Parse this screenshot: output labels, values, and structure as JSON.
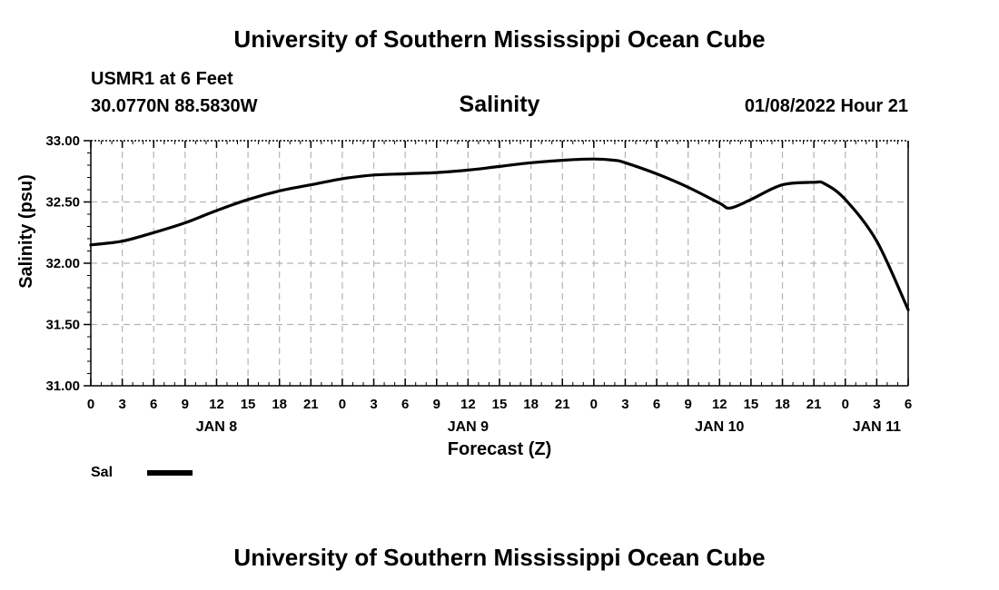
{
  "page": {
    "top_title": "University of Southern Mississippi Ocean Cube",
    "bottom_title": "University of Southern Mississippi Ocean Cube",
    "station": "USMR1 at 6 Feet",
    "coordinates": "30.0770N  88.5830W",
    "timestamp": "01/08/2022 Hour 21"
  },
  "chart_data": {
    "type": "line",
    "title": "Salinity",
    "xlabel": "Forecast (Z)",
    "ylabel": "Salinity (psu)",
    "x_unit": "forecast hours from JAN 8 00Z",
    "xlim": [
      0,
      78
    ],
    "ylim": [
      31.0,
      33.0
    ],
    "y_ticks": [
      "31.00",
      "31.50",
      "32.00",
      "32.50",
      "33.00"
    ],
    "y_tick_values": [
      31.0,
      31.5,
      32.0,
      32.5,
      33.0
    ],
    "x_ticks": [
      "0",
      "3",
      "6",
      "9",
      "12",
      "15",
      "18",
      "21",
      "0",
      "3",
      "6",
      "9",
      "12",
      "15",
      "18",
      "21",
      "0",
      "3",
      "6",
      "9",
      "12",
      "15",
      "18",
      "21",
      "0",
      "3",
      "6"
    ],
    "day_labels": [
      {
        "label": "JAN 8",
        "hour": 12
      },
      {
        "label": "JAN 9",
        "hour": 36
      },
      {
        "label": "JAN 10",
        "hour": 60
      },
      {
        "label": "JAN 11",
        "hour": 75
      }
    ],
    "grid": true,
    "legend": [
      {
        "name": "Sal",
        "color": "#000000"
      }
    ],
    "series": [
      {
        "name": "Sal",
        "color": "#000000",
        "x": [
          0,
          3,
          6,
          9,
          12,
          15,
          18,
          21,
          24,
          27,
          30,
          33,
          36,
          39,
          42,
          45,
          48,
          50,
          51,
          54,
          57,
          60,
          61,
          63,
          66,
          69,
          70,
          72,
          75,
          78
        ],
        "values": [
          32.15,
          32.18,
          32.25,
          32.33,
          32.43,
          32.52,
          32.59,
          32.64,
          32.69,
          32.72,
          32.73,
          32.74,
          32.76,
          32.79,
          32.82,
          32.84,
          32.85,
          32.84,
          32.82,
          32.73,
          32.62,
          32.49,
          32.45,
          32.52,
          32.64,
          32.66,
          32.65,
          32.52,
          32.18,
          31.62
        ]
      }
    ]
  }
}
